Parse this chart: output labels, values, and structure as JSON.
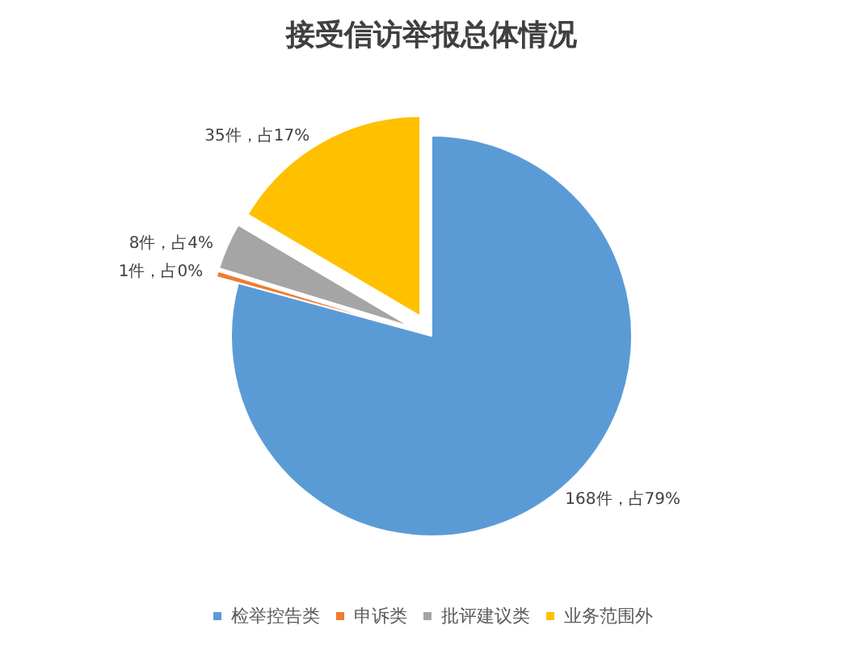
{
  "chart_data": {
    "type": "pie",
    "title": "接受信访举报总体情况",
    "categories": [
      "检举控告类",
      "申诉类",
      "批评建议类",
      "业务范围外"
    ],
    "values": [
      168,
      1,
      8,
      35
    ],
    "colors": [
      "#5b9bd5",
      "#ed7d31",
      "#a5a5a5",
      "#ffc000"
    ],
    "value_labels": [
      "168件，占79%",
      "1件，占0%",
      "8件，占4%",
      "35件，占17%"
    ],
    "legend": "bottom"
  }
}
